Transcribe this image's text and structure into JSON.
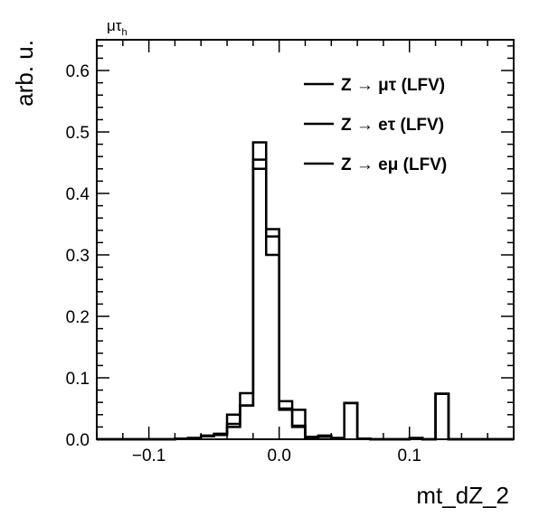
{
  "chart_data": {
    "type": "histogram",
    "channel_label": "μτ",
    "channel_sub": "h",
    "ylabel": "arb. u.",
    "xlabel": "mt_dZ_2",
    "xlim": [
      -0.14,
      0.18
    ],
    "ylim": [
      0,
      0.65
    ],
    "x_ticks": [
      {
        "value": -0.1,
        "label": "−0.1"
      },
      {
        "value": 0.0,
        "label": "0.0"
      },
      {
        "value": 0.1,
        "label": "0.1"
      }
    ],
    "y_ticks": [
      {
        "value": 0.0,
        "label": "0.0"
      },
      {
        "value": 0.1,
        "label": "0.1"
      },
      {
        "value": 0.2,
        "label": "0.2"
      },
      {
        "value": 0.3,
        "label": "0.3"
      },
      {
        "value": 0.4,
        "label": "0.4"
      },
      {
        "value": 0.5,
        "label": "0.5"
      },
      {
        "value": 0.6,
        "label": "0.6"
      }
    ],
    "bin_edges": [
      -0.14,
      -0.13,
      -0.12,
      -0.11,
      -0.1,
      -0.09,
      -0.08,
      -0.07,
      -0.06,
      -0.05,
      -0.04,
      -0.03,
      -0.02,
      -0.01,
      0.0,
      0.01,
      0.02,
      0.03,
      0.04,
      0.05,
      0.06,
      0.07,
      0.08,
      0.09,
      0.1,
      0.11,
      0.12,
      0.13,
      0.14,
      0.15,
      0.16,
      0.17,
      0.18
    ],
    "series": [
      {
        "name": "Z → μτ (LFV)",
        "color": "#000000",
        "values": [
          0,
          0,
          0,
          0,
          0,
          0,
          0.001,
          0.002,
          0.006,
          0.007,
          0.04,
          0.075,
          0.483,
          0.342,
          0.062,
          0.048,
          0.004,
          0.006,
          0.002,
          0.059,
          0.001,
          0,
          0,
          0,
          0.002,
          0,
          0.074,
          0,
          0,
          0,
          0,
          0
        ]
      },
      {
        "name": "Z → eτ (LFV)",
        "color": "#000000",
        "values": [
          0,
          0,
          0,
          0,
          0,
          0,
          0.001,
          0.002,
          0.005,
          0.009,
          0.025,
          0.055,
          0.455,
          0.33,
          0.05,
          0.022,
          0.003,
          0.005,
          0.002,
          0.059,
          0.001,
          0,
          0,
          0,
          0.002,
          0,
          0.074,
          0,
          0,
          0,
          0,
          0
        ]
      },
      {
        "name": "Z → eμ (LFV)",
        "color": "#000000",
        "values": [
          0,
          0,
          0,
          0,
          0,
          0,
          0.001,
          0.002,
          0.005,
          0.008,
          0.02,
          0.055,
          0.44,
          0.3,
          0.048,
          0.02,
          0.003,
          0.004,
          0.002,
          0.059,
          0.001,
          0,
          0,
          0,
          0.002,
          0,
          0.074,
          0,
          0,
          0,
          0,
          0
        ]
      }
    ],
    "legend": [
      {
        "prefix": "Z",
        "particles": "μτ",
        "suffix": "(LFV)"
      },
      {
        "prefix": "Z",
        "particles": "eτ",
        "suffix": "(LFV)"
      },
      {
        "prefix": "Z",
        "particles": "eμ",
        "suffix": "(LFV)"
      }
    ],
    "legend_position": "top-right",
    "arrow_symbol": "→"
  }
}
